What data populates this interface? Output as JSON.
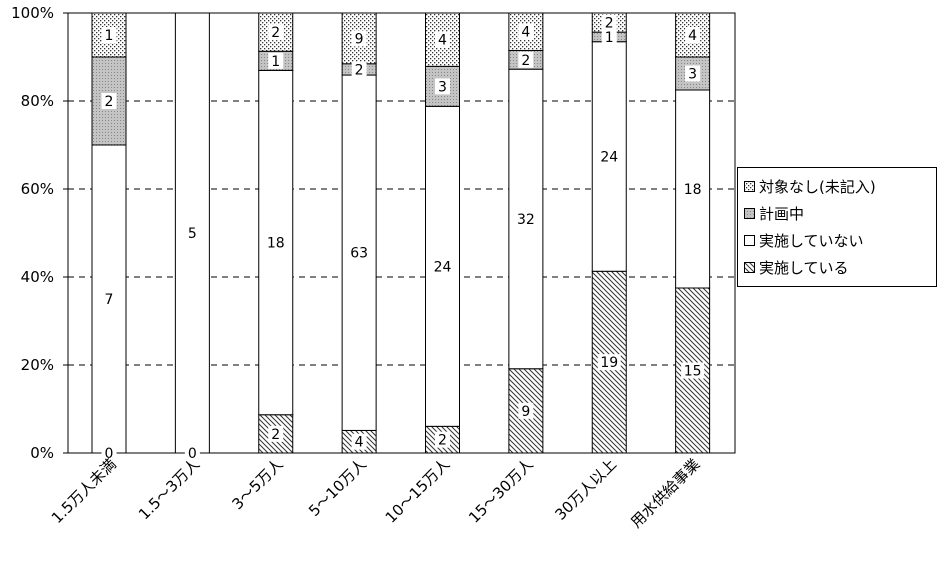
{
  "chart_data": {
    "type": "bar",
    "stacked": "percent",
    "categories": [
      "1.5万人未満",
      "1.5～3万人",
      "3～5万人",
      "5～10万人",
      "10～15万人",
      "15～30万人",
      "30万人以上",
      "用水供給事業"
    ],
    "series": [
      {
        "name": "実施している",
        "values": [
          0,
          0,
          2,
          4,
          2,
          9,
          19,
          15
        ],
        "pattern": "hatch"
      },
      {
        "name": "実施していない",
        "values": [
          7,
          5,
          18,
          63,
          24,
          32,
          24,
          18
        ],
        "pattern": "white"
      },
      {
        "name": "計画中",
        "values": [
          2,
          0,
          1,
          2,
          3,
          2,
          1,
          3
        ],
        "pattern": "gray"
      },
      {
        "name": "対象なし(未記入)",
        "values": [
          1,
          0,
          2,
          9,
          4,
          4,
          2,
          4
        ],
        "pattern": "dots"
      }
    ],
    "labels_shown": [
      [
        "0",
        "7",
        "2",
        "1"
      ],
      [
        "0",
        "5",
        "",
        ""
      ],
      [
        "2",
        "18",
        "1",
        "2"
      ],
      [
        "4",
        "63",
        "2",
        "9"
      ],
      [
        "2",
        "24",
        "3",
        "4"
      ],
      [
        "9",
        "32",
        "2",
        "4"
      ],
      [
        "19",
        "24",
        "1",
        "2"
      ],
      [
        "15",
        "18",
        "3",
        "4"
      ]
    ],
    "y_ticks": [
      "0%",
      "20%",
      "40%",
      "60%",
      "80%",
      "100%"
    ],
    "ylim": [
      0,
      100
    ],
    "grid": "horizontal-dashed",
    "legend_position": "right",
    "legend_order": [
      "対象なし(未記入)",
      "計画中",
      "実施していない",
      "実施している"
    ]
  }
}
